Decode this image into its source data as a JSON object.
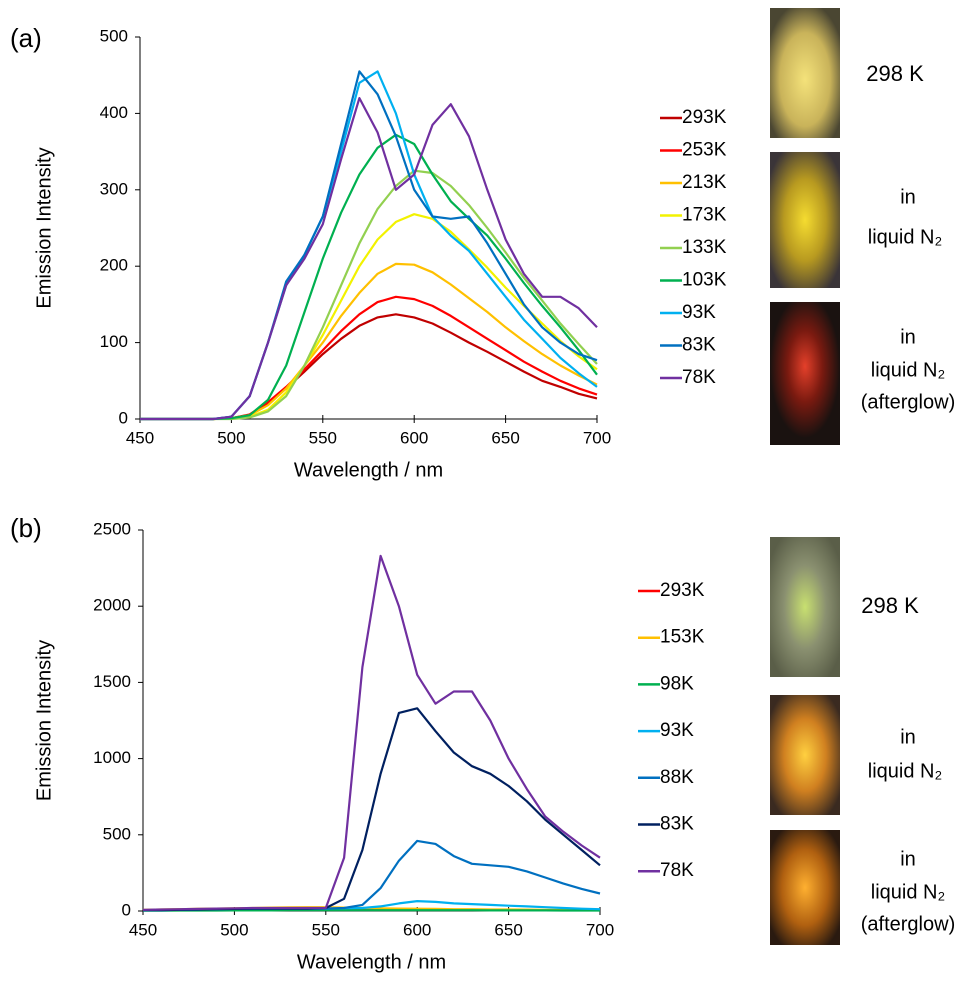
{
  "chart_data": [
    {
      "type": "line",
      "panel_label": "(a)",
      "x_label": "Wavelength / nm",
      "y_label": "Emission Intensity",
      "x": [
        450,
        460,
        470,
        480,
        490,
        500,
        510,
        520,
        530,
        540,
        550,
        560,
        570,
        580,
        590,
        600,
        610,
        620,
        630,
        640,
        650,
        660,
        670,
        680,
        690,
        700
      ],
      "xlim": [
        450,
        700
      ],
      "xticks": [
        450,
        500,
        550,
        600,
        650,
        700
      ],
      "ylim": [
        0,
        500
      ],
      "yticks": [
        0,
        100,
        200,
        300,
        400,
        500
      ],
      "grid": false,
      "series": [
        {
          "name": "293K",
          "color": "#c00000",
          "values": [
            0,
            0,
            0,
            0,
            0,
            1,
            5,
            20,
            40,
            62,
            85,
            105,
            122,
            133,
            137,
            133,
            125,
            113,
            100,
            88,
            75,
            62,
            50,
            42,
            33,
            27
          ]
        },
        {
          "name": "253K",
          "color": "#ff0000",
          "values": [
            0,
            0,
            0,
            0,
            0,
            1,
            6,
            22,
            42,
            65,
            90,
            115,
            137,
            153,
            160,
            157,
            148,
            135,
            120,
            105,
            90,
            75,
            62,
            50,
            40,
            32
          ]
        },
        {
          "name": "213K",
          "color": "#ffc000",
          "values": [
            0,
            0,
            0,
            0,
            0,
            1,
            5,
            18,
            40,
            70,
            100,
            135,
            165,
            190,
            203,
            202,
            192,
            176,
            158,
            140,
            120,
            102,
            85,
            70,
            57,
            45
          ]
        },
        {
          "name": "173K",
          "color": "#f2f200",
          "values": [
            0,
            0,
            0,
            0,
            0,
            1,
            3,
            12,
            35,
            70,
            110,
            155,
            200,
            235,
            258,
            268,
            262,
            245,
            222,
            198,
            172,
            148,
            125,
            102,
            82,
            65
          ]
        },
        {
          "name": "133K",
          "color": "#92d050",
          "values": [
            0,
            0,
            0,
            0,
            0,
            0,
            2,
            10,
            30,
            70,
            120,
            175,
            230,
            275,
            305,
            325,
            322,
            305,
            280,
            250,
            218,
            185,
            155,
            125,
            98,
            72
          ]
        },
        {
          "name": "103K",
          "color": "#00b050",
          "values": [
            0,
            0,
            0,
            0,
            0,
            1,
            5,
            25,
            70,
            140,
            210,
            270,
            320,
            355,
            372,
            360,
            320,
            285,
            262,
            240,
            210,
            178,
            148,
            120,
            90,
            58
          ]
        },
        {
          "name": "93K",
          "color": "#00b0f0",
          "values": [
            0,
            0,
            0,
            0,
            0,
            3,
            30,
            100,
            175,
            215,
            265,
            350,
            440,
            455,
            400,
            320,
            265,
            240,
            220,
            190,
            160,
            130,
            105,
            80,
            60,
            42
          ]
        },
        {
          "name": "83K",
          "color": "#0070c0",
          "values": [
            0,
            0,
            0,
            0,
            0,
            3,
            30,
            100,
            180,
            215,
            265,
            360,
            455,
            425,
            370,
            300,
            265,
            262,
            265,
            230,
            190,
            150,
            120,
            100,
            85,
            77
          ]
        },
        {
          "name": "78K",
          "color": "#7030a0",
          "values": [
            0,
            0,
            0,
            0,
            0,
            3,
            30,
            100,
            175,
            210,
            255,
            340,
            420,
            375,
            300,
            320,
            385,
            412,
            370,
            300,
            235,
            190,
            160,
            160,
            145,
            120
          ]
        }
      ],
      "annotations": [
        "298 K",
        "in",
        "liquid N₂",
        "in",
        "liquid N₂",
        "(afterglow)"
      ]
    },
    {
      "type": "line",
      "panel_label": "(b)",
      "x_label": "Wavelength / nm",
      "y_label": "Emission Intensity",
      "x": [
        450,
        460,
        470,
        480,
        490,
        500,
        510,
        520,
        530,
        540,
        550,
        560,
        570,
        580,
        590,
        600,
        610,
        620,
        630,
        640,
        650,
        660,
        670,
        680,
        690,
        700
      ],
      "xlim": [
        450,
        700
      ],
      "xticks": [
        450,
        500,
        550,
        600,
        650,
        700
      ],
      "ylim": [
        0,
        2500
      ],
      "yticks": [
        0,
        500,
        1000,
        1500,
        2000,
        2500
      ],
      "grid": false,
      "series": [
        {
          "name": "293K",
          "color": "#ff0000",
          "values": [
            5,
            5,
            5,
            5,
            8,
            10,
            10,
            12,
            12,
            12,
            14,
            12,
            10,
            10,
            10,
            10,
            8,
            8,
            8,
            6,
            6,
            5,
            5,
            5,
            4,
            4
          ]
        },
        {
          "name": "153K",
          "color": "#ffc000",
          "values": [
            8,
            10,
            12,
            14,
            16,
            18,
            20,
            22,
            24,
            25,
            25,
            22,
            20,
            18,
            16,
            15,
            14,
            12,
            12,
            10,
            10,
            9,
            8,
            8,
            7,
            6
          ]
        },
        {
          "name": "98K",
          "color": "#00b050",
          "values": [
            2,
            2,
            3,
            3,
            3,
            4,
            4,
            4,
            5,
            5,
            5,
            5,
            5,
            5,
            5,
            5,
            5,
            5,
            5,
            4,
            4,
            4,
            4,
            3,
            3,
            3
          ]
        },
        {
          "name": "93K",
          "color": "#00b0f0",
          "values": [
            5,
            6,
            8,
            10,
            12,
            14,
            15,
            16,
            16,
            16,
            16,
            18,
            20,
            30,
            50,
            65,
            60,
            50,
            45,
            40,
            35,
            30,
            25,
            20,
            15,
            12
          ]
        },
        {
          "name": "88K",
          "color": "#0070c0",
          "values": [
            5,
            6,
            8,
            10,
            12,
            14,
            15,
            16,
            16,
            16,
            16,
            20,
            40,
            150,
            330,
            460,
            440,
            360,
            310,
            300,
            290,
            260,
            220,
            180,
            145,
            115
          ]
        },
        {
          "name": "83K",
          "color": "#002060",
          "values": [
            5,
            6,
            8,
            10,
            12,
            14,
            15,
            16,
            16,
            16,
            20,
            80,
            400,
            900,
            1300,
            1330,
            1180,
            1040,
            950,
            900,
            820,
            720,
            600,
            500,
            400,
            300
          ]
        },
        {
          "name": "78K",
          "color": "#7030a0",
          "values": [
            8,
            10,
            12,
            14,
            16,
            18,
            20,
            20,
            20,
            20,
            20,
            350,
            1600,
            2330,
            2000,
            1550,
            1360,
            1440,
            1440,
            1250,
            1000,
            800,
            620,
            520,
            430,
            350
          ]
        }
      ],
      "annotations": [
        "298 K",
        "in",
        "liquid N₂",
        "in",
        "liquid N₂",
        "(afterglow)"
      ]
    }
  ]
}
